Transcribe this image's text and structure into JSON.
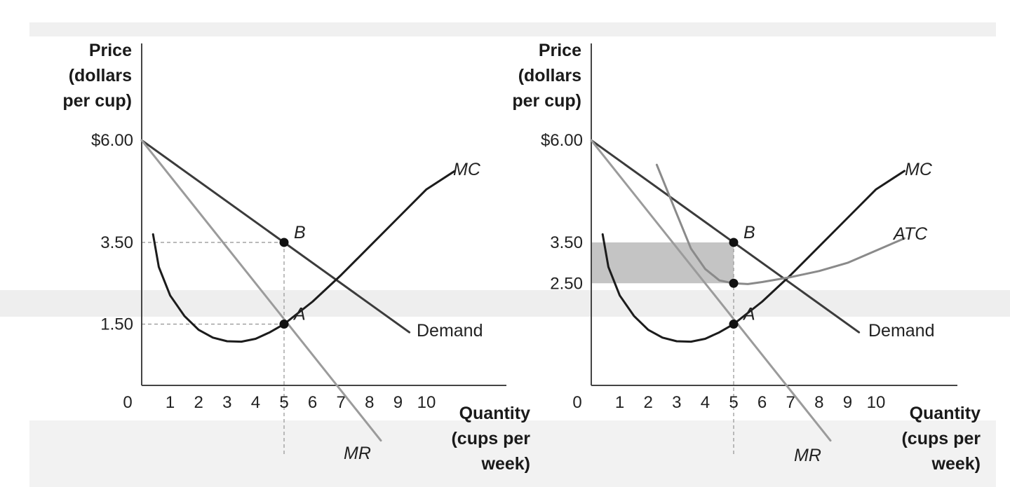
{
  "bands": {
    "top": "#f0f0f0",
    "mid": "#eeeeee",
    "bottom": "#f2f2f2"
  },
  "chart_data": [
    {
      "type": "line",
      "ylabel_lines": [
        "Price",
        "(dollars",
        "per cup)"
      ],
      "xlabel_lines": [
        "Quantity",
        "(cups per",
        "week)"
      ],
      "origin_label": "0",
      "x_ticks": [
        1,
        2,
        3,
        4,
        5,
        6,
        7,
        8,
        9,
        10
      ],
      "y_ticks": [
        {
          "value": 6.0,
          "label": "$6.00"
        },
        {
          "value": 3.5,
          "label": "3.50"
        },
        {
          "value": 1.5,
          "label": "1.50"
        }
      ],
      "xlim": [
        0,
        12.8
      ],
      "ylim": [
        0,
        8.4
      ],
      "series": [
        {
          "name": "Demand",
          "label_style": "normal",
          "color": "#3b3b3b",
          "width": 3,
          "x": [
            0,
            9.4
          ],
          "y": [
            6.0,
            1.3
          ]
        },
        {
          "name": "MR",
          "label_style": "italic",
          "color": "#9b9b9b",
          "width": 3,
          "x": [
            0,
            8.4
          ],
          "y": [
            6.0,
            -1.35
          ]
        },
        {
          "name": "MC",
          "label_style": "italic",
          "color": "#1c1c1c",
          "width": 3,
          "x": [
            0.4,
            0.6,
            1.0,
            1.5,
            2.0,
            2.5,
            3.0,
            3.5,
            4.0,
            4.5,
            5.0,
            6.0,
            7.0,
            8.0,
            9.0,
            10.0,
            11.0
          ],
          "y": [
            3.7,
            2.9,
            2.2,
            1.7,
            1.36,
            1.17,
            1.08,
            1.07,
            1.14,
            1.3,
            1.5,
            2.05,
            2.7,
            3.4,
            4.1,
            4.8,
            5.25
          ]
        }
      ],
      "points": [
        {
          "label": "B",
          "x": 5,
          "y": 3.5
        },
        {
          "label": "A",
          "x": 5,
          "y": 1.5
        }
      ],
      "guides": [
        {
          "x": 5,
          "y": 3.5,
          "to_axis_y": true,
          "down_to_y": -1.7
        },
        {
          "x": 5,
          "y": 1.5,
          "to_axis_y": true
        }
      ]
    },
    {
      "type": "line",
      "ylabel_lines": [
        "Price",
        "(dollars",
        "per cup)"
      ],
      "xlabel_lines": [
        "Quantity",
        "(cups per",
        "week)"
      ],
      "origin_label": "0",
      "x_ticks": [
        1,
        2,
        3,
        4,
        5,
        6,
        7,
        8,
        9,
        10
      ],
      "y_ticks": [
        {
          "value": 6.0,
          "label": "$6.00"
        },
        {
          "value": 3.5,
          "label": "3.50"
        },
        {
          "value": 2.5,
          "label": "2.50"
        }
      ],
      "xlim": [
        0,
        12.8
      ],
      "ylim": [
        0,
        8.4
      ],
      "shaded_rect": {
        "x0": 0,
        "x1": 5,
        "y0": 2.5,
        "y1": 3.5,
        "color": "#c4c4c4"
      },
      "series": [
        {
          "name": "Demand",
          "label_style": "normal",
          "color": "#3b3b3b",
          "width": 3,
          "x": [
            0,
            9.4
          ],
          "y": [
            6.0,
            1.3
          ]
        },
        {
          "name": "MR",
          "label_style": "italic",
          "color": "#9b9b9b",
          "width": 3,
          "x": [
            0,
            8.4
          ],
          "y": [
            6.0,
            -1.35
          ]
        },
        {
          "name": "MC",
          "label_style": "italic",
          "color": "#1c1c1c",
          "width": 3,
          "x": [
            0.4,
            0.6,
            1.0,
            1.5,
            2.0,
            2.5,
            3.0,
            3.5,
            4.0,
            4.5,
            5.0,
            6.0,
            7.0,
            8.0,
            9.0,
            10.0,
            11.0
          ],
          "y": [
            3.7,
            2.9,
            2.2,
            1.7,
            1.36,
            1.17,
            1.08,
            1.07,
            1.14,
            1.3,
            1.5,
            2.05,
            2.7,
            3.4,
            4.1,
            4.8,
            5.25
          ]
        },
        {
          "name": "ATC",
          "label_style": "italic",
          "color": "#8a8a8a",
          "width": 3,
          "x": [
            2.3,
            3.0,
            3.5,
            4.0,
            4.5,
            5.0,
            5.5,
            6.0,
            7.0,
            8.0,
            9.0,
            10.0,
            11.0
          ],
          "y": [
            5.4,
            4.2,
            3.35,
            2.85,
            2.57,
            2.5,
            2.48,
            2.53,
            2.65,
            2.8,
            3.0,
            3.3,
            3.6
          ]
        }
      ],
      "points": [
        {
          "label": "B",
          "x": 5,
          "y": 3.5
        },
        {
          "label": "",
          "x": 5,
          "y": 2.5
        },
        {
          "label": "A",
          "x": 5,
          "y": 1.5
        }
      ],
      "guides": [
        {
          "x": 5,
          "y": 3.5,
          "to_axis_y": false,
          "down_to_y": -1.7
        }
      ]
    }
  ]
}
